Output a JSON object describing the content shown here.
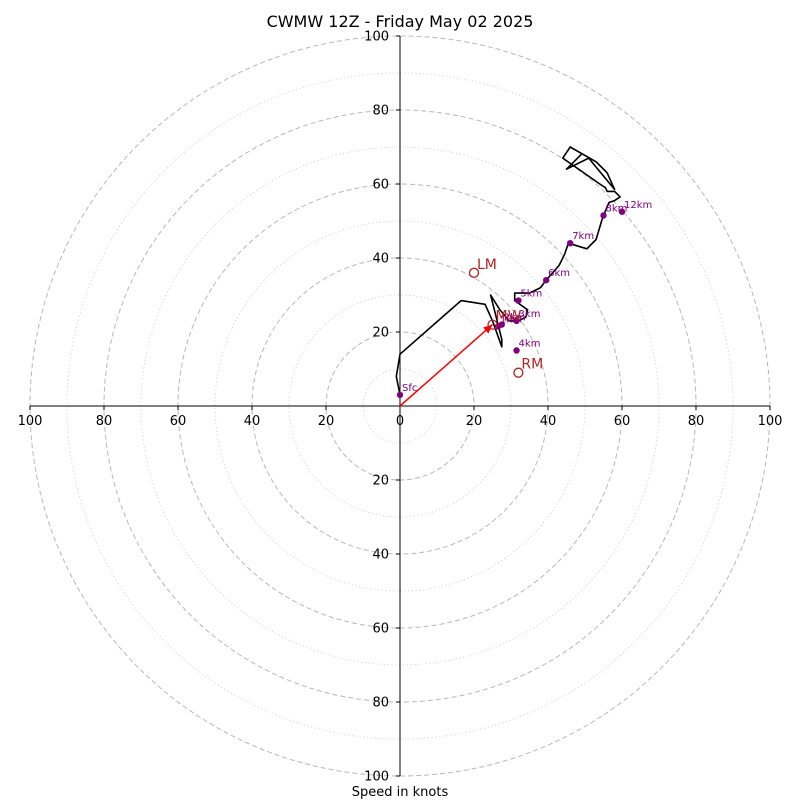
{
  "chart_data": {
    "type": "hodograph",
    "title": "CWMW 12Z - Friday May 02 2025",
    "xlabel": "Speed in knots",
    "ylabel": "",
    "range_knots": 100,
    "ring_major_step": 20,
    "ring_minor_step": 10,
    "tick_labels_x": [
      "100",
      "80",
      "60",
      "40",
      "20",
      "0",
      "20",
      "40",
      "60",
      "80",
      "100"
    ],
    "tick_labels_y_up": [
      "20",
      "40",
      "60",
      "80",
      "100"
    ],
    "tick_labels_y_down": [
      "20",
      "40",
      "60",
      "80",
      "100"
    ],
    "hodograph_trace": {
      "color": "#000000",
      "points": [
        [
          0,
          3
        ],
        [
          -1,
          8
        ],
        [
          0,
          14
        ],
        [
          16.5,
          28.5
        ],
        [
          23,
          27.5
        ],
        [
          25,
          23
        ],
        [
          27.5,
          16
        ],
        [
          27.5,
          18
        ],
        [
          25,
          28
        ],
        [
          24.5,
          30
        ],
        [
          27,
          26
        ],
        [
          29.5,
          23
        ],
        [
          32,
          23
        ],
        [
          34,
          24
        ],
        [
          34.5,
          26
        ],
        [
          31,
          28.5
        ],
        [
          31,
          30.5
        ],
        [
          35,
          30.5
        ],
        [
          38,
          32
        ],
        [
          39.5,
          34
        ],
        [
          43,
          38
        ],
        [
          44.5,
          41
        ],
        [
          45.5,
          44
        ],
        [
          50.5,
          42.5
        ],
        [
          51,
          43
        ],
        [
          53,
          45
        ],
        [
          54.5,
          50
        ],
        [
          55,
          51.5
        ],
        [
          56.5,
          55
        ],
        [
          58,
          55.5
        ],
        [
          59.5,
          56.5
        ],
        [
          59,
          57
        ],
        [
          58,
          58
        ],
        [
          56,
          58
        ],
        [
          55.5,
          59
        ],
        [
          54,
          60
        ],
        [
          44,
          67
        ],
        [
          46,
          70
        ],
        [
          53,
          66
        ],
        [
          55.5,
          63.5
        ],
        [
          56,
          63
        ],
        [
          58,
          58.5
        ],
        [
          51,
          67
        ],
        [
          45,
          64
        ],
        [
          49,
          68
        ]
      ]
    },
    "height_points": [
      {
        "label": "Sfc",
        "u": 0,
        "v": 3
      },
      {
        "label": "1km",
        "u": 26.5,
        "v": 21.5
      },
      {
        "label": "2km",
        "u": 27.5,
        "v": 22
      },
      {
        "label": "3km",
        "u": 31.5,
        "v": 23
      },
      {
        "label": "4km",
        "u": 31.5,
        "v": 15
      },
      {
        "label": "5km",
        "u": 32,
        "v": 28.5
      },
      {
        "label": "6km",
        "u": 39.5,
        "v": 34
      },
      {
        "label": "7km",
        "u": 46,
        "v": 44
      },
      {
        "label": "8km",
        "u": 55,
        "v": 51.5
      },
      {
        "label": "12km",
        "u": 60,
        "v": 52.5
      }
    ],
    "height_color": "#800080",
    "storm_motions": [
      {
        "label": "LM",
        "u": 20,
        "v": 36
      },
      {
        "label": "RM",
        "u": 32,
        "v": 9
      },
      {
        "label": "MW",
        "u": 25,
        "v": 22
      }
    ],
    "motion_color": "#b22222",
    "mean_wind_vector": {
      "u": 25,
      "v": 22,
      "color": "#ff0000"
    }
  }
}
